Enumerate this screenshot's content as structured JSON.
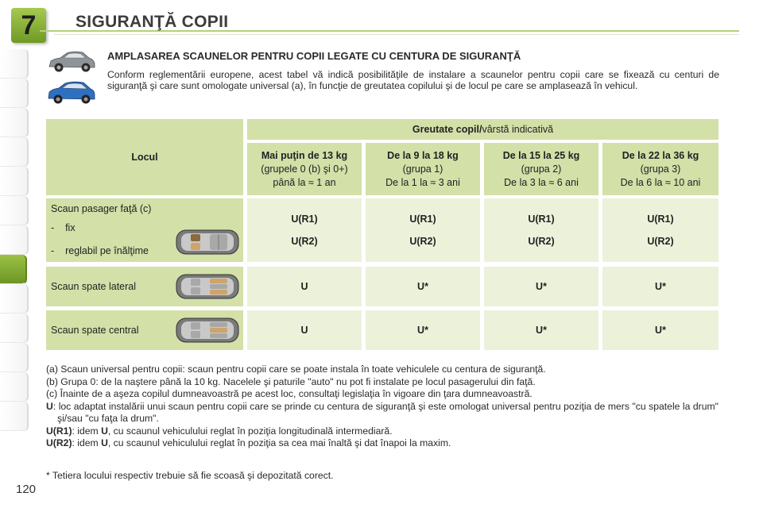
{
  "header": {
    "chapter_number": "7",
    "title": "SIGURANŢĂ COPII"
  },
  "section": {
    "heading": "AMPLASAREA SCAUNELOR PENTRU COPII LEGATE CU CENTURA DE SIGURANŢĂ",
    "intro": "Conform reglementării europene, acest tabel vă indică posibilităţile de instalare a scaunelor pentru copii care se fixează cu centuri de siguranţă şi care sunt omologate universal (a), în funcţie de greutatea copilului şi de locul pe care se amplasează în vehicul."
  },
  "table": {
    "seat_header": "Locul",
    "weight_header_bold": "Greutate copil/",
    "weight_header_normal": "vârstă indicativă",
    "columns": [
      {
        "title": "Mai puţin de 13 kg",
        "group": "(grupele 0 (b) şi 0+)",
        "age": "până la ≈ 1 an"
      },
      {
        "title": "De la 9 la 18 kg",
        "group": "(grupa 1)",
        "age": "De la 1 la ≈ 3 ani"
      },
      {
        "title": "De la 15 la 25 kg",
        "group": "(grupa 2)",
        "age": "De la 3 la ≈ 6 ani"
      },
      {
        "title": "De la 22 la 36 kg",
        "group": "(grupa 3)",
        "age": "De la 6 la ≈ 10 ani"
      }
    ],
    "rows": [
      {
        "label": "Scaun pasager faţă (c)",
        "sub1": "fix",
        "sub2": "reglabil pe înălţime",
        "values1": [
          "U(R1)",
          "U(R1)",
          "U(R1)",
          "U(R1)"
        ],
        "values2": [
          "U(R2)",
          "U(R2)",
          "U(R2)",
          "U(R2)"
        ]
      },
      {
        "label": "Scaun spate lateral",
        "values": [
          "U",
          "U*",
          "U*",
          "U*"
        ]
      },
      {
        "label": "Scaun spate central",
        "values": [
          "U",
          "U*",
          "U*",
          "U*"
        ]
      }
    ],
    "dash": "-"
  },
  "notes": {
    "a": "(a) Scaun universal pentru copii: scaun pentru copii care se poate instala în toate vehiculele cu centura de siguranţă.",
    "b": "(b) Grupa 0: de la naştere până la 10 kg. Nacelele şi paturile \"auto\" nu pot fi instalate pe locul pasagerului din faţă.",
    "c": "(c) Înainte de a aşeza copilul dumneavoastră pe acest loc, consultaţi legislaţia în vigoare din ţara dumneavoastră.",
    "u_term": "U",
    "u_text": ": loc adaptat instalării unui scaun pentru copii care se prinde cu centura de siguranţă şi este omologat universal pentru poziţia de mers \"cu spatele la drum\" şi/sau \"cu faţa la drum\".",
    "ur1_term": "U(R1)",
    "ur1_text_a": ": idem ",
    "ur1_u": "U",
    "ur1_text_b": ", cu scaunul vehiculului reglat în poziţia longitudinală intermediară.",
    "ur2_term": "U(R2)",
    "ur2_text_a": ": idem ",
    "ur2_u": "U",
    "ur2_text_b": ", cu scaunul vehiculului reglat în poziţia sa cea mai înaltă şi dat înapoi la maxim."
  },
  "footnote": "* Tetiera locului respectiv trebuie să fie scoasă şi depozitată corect.",
  "page_number": "120",
  "colors": {
    "accent_green": "#8ab43a",
    "table_dark": "#d3e0a8",
    "table_light": "#ecf2da"
  }
}
